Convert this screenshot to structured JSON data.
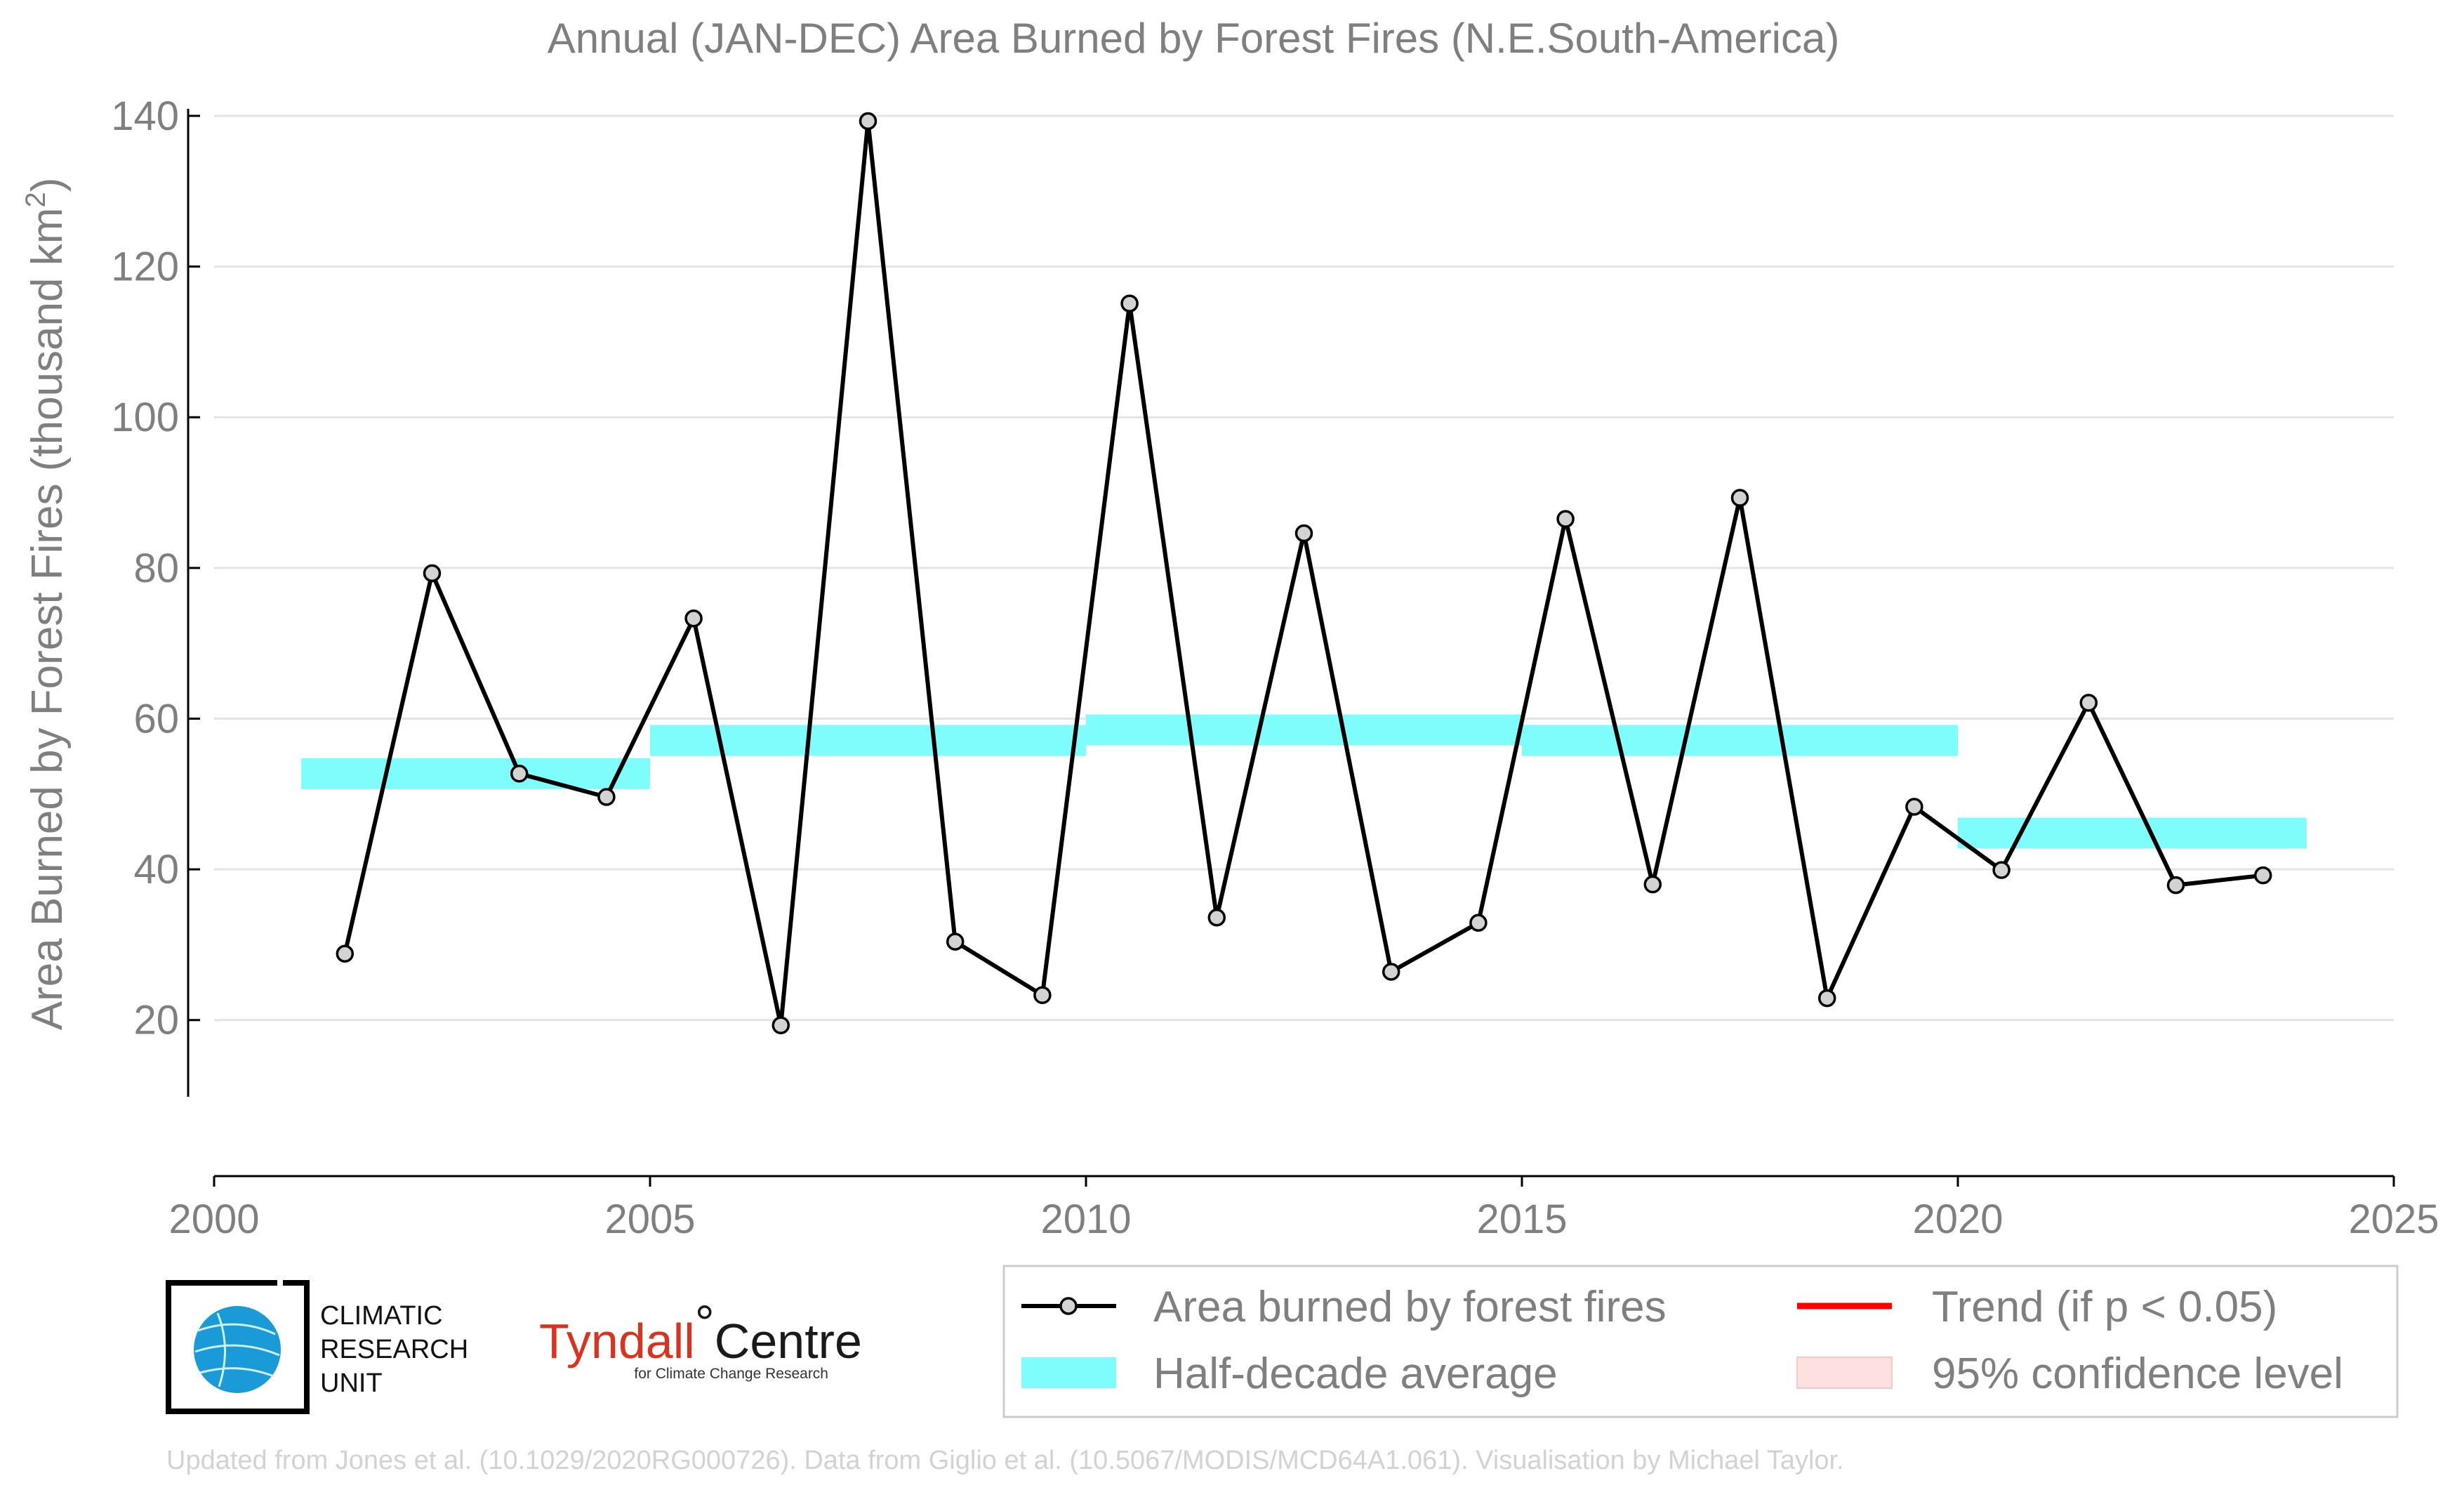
{
  "chart_data": {
    "type": "line",
    "title": "Annual (JAN-DEC) Area Burned by Forest Fires (N.E.South-America)",
    "ylabel": "Area Burned by Forest Fires (thousand km",
    "ylabel_sup": "2",
    "ylabel_close": ")",
    "xlabel": "",
    "xlim": [
      2000,
      2025
    ],
    "ylim": [
      10,
      140
    ],
    "x_ticks": [
      2000,
      2005,
      2010,
      2015,
      2020,
      2025
    ],
    "y_ticks": [
      20,
      40,
      60,
      80,
      100,
      120,
      140
    ],
    "grid": "horizontal",
    "series": [
      {
        "name": "Area burned by forest fires",
        "color": "#000000",
        "x": [
          2001.5,
          2002.5,
          2003.5,
          2004.5,
          2005.5,
          2006.5,
          2007.5,
          2008.5,
          2009.5,
          2010.5,
          2011.5,
          2012.5,
          2013.5,
          2014.5,
          2015.5,
          2016.5,
          2017.5,
          2018.5,
          2019.5,
          2020.5,
          2021.5,
          2022.5,
          2023.5
        ],
        "values": [
          28.8,
          79.3,
          52.7,
          49.6,
          73.3,
          19.3,
          139.3,
          30.4,
          23.3,
          115.1,
          33.6,
          84.6,
          26.4,
          32.9,
          86.5,
          38.0,
          89.3,
          22.9,
          48.3,
          39.9,
          62.1,
          37.9,
          39.2
        ]
      },
      {
        "name": "Half-decade average",
        "color": "#7ffcfc",
        "segments": [
          {
            "x0": 2001,
            "x1": 2005,
            "value": 52.7
          },
          {
            "x0": 2005,
            "x1": 2010,
            "value": 57.1
          },
          {
            "x0": 2010,
            "x1": 2015,
            "value": 58.5
          },
          {
            "x0": 2015,
            "x1": 2020,
            "value": 57.1
          },
          {
            "x0": 2020,
            "x1": 2024,
            "value": 44.8
          }
        ]
      }
    ],
    "legend": {
      "placement": "bottom-right",
      "items": [
        {
          "label": "Area burned by forest fires",
          "kind": "line-marker",
          "color": "#000000"
        },
        {
          "label": "Trend (if p < 0.05)",
          "kind": "line",
          "color": "#ff0000"
        },
        {
          "label": "Half-decade average",
          "kind": "patch",
          "color": "#7ffcfc"
        },
        {
          "label": "95% confidence level",
          "kind": "patch",
          "color": "#ffe0e0"
        }
      ]
    }
  },
  "logos": {
    "cru": [
      "CLIMATIC",
      "RESEARCH",
      "UNIT"
    ],
    "tyndall_name": "Tyndall",
    "tyndall_degree": "°",
    "tyndall_centre": "Centre",
    "tyndall_sub": "for Climate Change Research"
  },
  "credit": "Updated from Jones et al. (10.1029/2020RG000726). Data from Giglio et al. (10.5067/MODIS/MCD64A1.061). Visualisation by Michael Taylor."
}
